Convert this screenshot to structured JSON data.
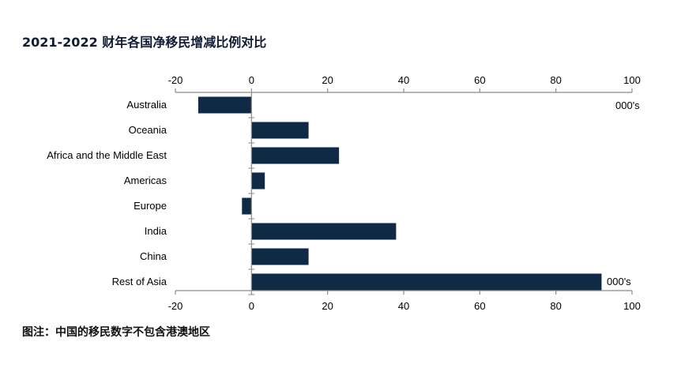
{
  "chart_data": {
    "type": "bar",
    "orientation": "horizontal",
    "title": "2021-2022 财年各国净移民增减比例对比",
    "note": "图注：中国的移民数字不包含港澳地区",
    "unit_label": "000's",
    "categories": [
      "Australia",
      "Oceania",
      "Africa and the Middle East",
      "Americas",
      "Europe",
      "India",
      "China",
      "Rest of Asia"
    ],
    "values": [
      -14,
      15,
      23,
      3.5,
      -2.5,
      38,
      15,
      92
    ],
    "xlim": [
      -20,
      100
    ],
    "xticks": [
      -20,
      0,
      20,
      40,
      60,
      80,
      100
    ],
    "xtick_labels": [
      "-20",
      "0",
      "20",
      "40",
      "60",
      "80",
      "100"
    ],
    "axis_position": "top and bottom",
    "grid": false,
    "bar_color": "#0e2a47"
  }
}
